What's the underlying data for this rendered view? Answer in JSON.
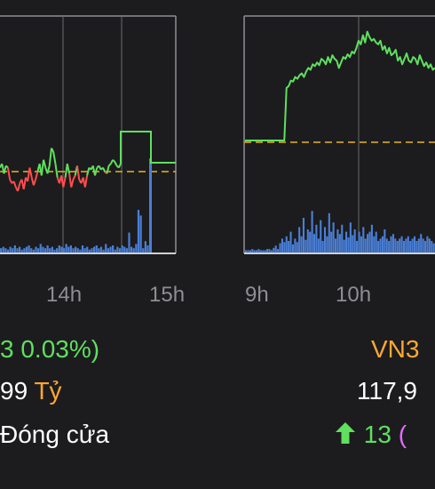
{
  "colors": {
    "background": "#1c1c1e",
    "up": "#5fe05f",
    "down": "#ff4d4d",
    "reference": "#e6b422",
    "volume": "#4a7fd6",
    "label_orange": "#ffa733",
    "label_magenta": "#e66bff",
    "frame": "#8e8e93"
  },
  "left_panel": {
    "time_labels": [
      "14h",
      "15h"
    ],
    "change_text": "3 0.03%)",
    "value_number": "99",
    "value_unit": "Tỷ",
    "status_text": "Đóng cửa"
  },
  "right_panel": {
    "time_labels": [
      "9h",
      "10h"
    ],
    "index_name": "VN3",
    "value_number": "117,9",
    "change_icon": "arrow-up-icon",
    "change_number": "13",
    "change_paren": "("
  },
  "chart_data": [
    {
      "type": "line",
      "reference_line": 0,
      "x_ticks": [
        "14h",
        "15h"
      ],
      "price_series": [
        2,
        4,
        -1,
        3,
        2,
        -4,
        -6,
        -5,
        -8,
        -10,
        -6,
        -4,
        -9,
        -3,
        -5,
        2,
        -3,
        -7,
        -4,
        0,
        4,
        -2,
        6,
        2,
        -1,
        3,
        12,
        10,
        4,
        -3,
        -6,
        -2,
        -8,
        -3,
        4,
        -1,
        -8,
        -4,
        -2,
        3,
        -4,
        -6,
        -3,
        -8,
        -2,
        2,
        1,
        3,
        -2,
        2,
        3,
        1,
        2,
        0,
        -1,
        3,
        4,
        6,
        5,
        3,
        2,
        4
      ],
      "close_series": [
        38,
        38,
        38,
        38,
        38,
        38,
        2,
        2,
        2,
        2
      ],
      "volume": [
        3,
        4,
        3,
        2,
        4,
        3,
        5,
        3,
        4,
        2,
        3,
        4,
        5,
        3,
        2,
        4,
        3,
        6,
        4,
        3,
        5,
        3,
        4,
        2,
        3,
        5,
        4,
        3,
        6,
        4,
        5,
        3,
        4,
        3,
        2,
        5,
        3,
        4,
        2,
        3,
        4,
        5,
        3,
        4,
        2,
        6,
        3,
        4,
        5,
        2,
        4,
        3,
        5,
        4,
        3,
        14,
        4,
        3,
        6,
        30,
        26,
        3,
        8,
        5
      ]
    },
    {
      "type": "line",
      "reference_line": 0,
      "x_ticks": [
        "9h",
        "10h"
      ],
      "price_series": [
        0,
        0,
        0,
        0,
        0,
        0,
        0,
        0,
        0,
        0,
        0,
        0,
        0,
        0,
        0,
        0,
        0,
        0,
        0,
        58,
        60,
        66,
        65,
        70,
        68,
        72,
        74,
        70,
        76,
        80,
        78,
        84,
        82,
        86,
        83,
        90,
        88,
        84,
        92,
        86,
        94,
        90,
        88,
        80,
        86,
        92,
        90,
        95,
        92,
        98,
        96,
        102,
        110,
        106,
        116,
        108,
        120,
        114,
        110,
        112,
        108,
        106,
        110,
        100,
        104,
        96,
        102,
        94,
        96,
        100,
        88,
        92,
        84,
        90,
        96,
        88,
        86,
        92,
        90,
        84,
        94,
        88,
        82,
        86,
        80,
        84,
        78,
        80
      ],
      "volume": [
        2,
        2,
        2,
        3,
        2,
        2,
        3,
        2,
        2,
        2,
        3,
        3,
        2,
        4,
        6,
        3,
        8,
        12,
        9,
        14,
        10,
        18,
        7,
        12,
        9,
        22,
        14,
        30,
        11,
        20,
        18,
        36,
        16,
        24,
        12,
        28,
        10,
        22,
        14,
        34,
        18,
        26,
        12,
        20,
        16,
        24,
        11,
        18,
        13,
        26,
        15,
        20,
        10,
        18,
        14,
        22,
        12,
        16,
        18,
        24,
        14,
        18,
        10,
        12,
        14,
        20,
        12,
        10,
        14,
        16,
        12,
        10,
        12,
        14,
        10,
        12,
        14,
        10,
        12,
        14,
        10,
        12,
        16,
        12,
        10,
        14,
        12,
        10,
        8
      ]
    }
  ]
}
